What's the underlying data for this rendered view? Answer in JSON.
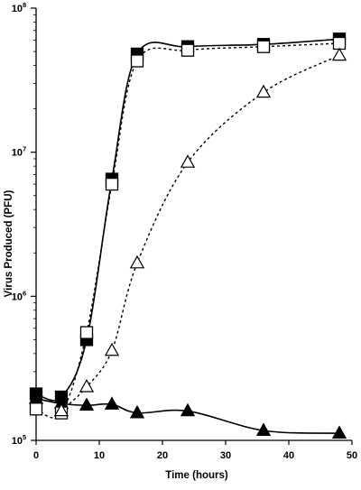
{
  "chart_data": {
    "type": "line",
    "title": "",
    "xlabel": "Time (hours)",
    "ylabel": "Virus Produced (PFU)",
    "x_scale": "linear",
    "y_scale": "log",
    "xlim": [
      0,
      50
    ],
    "ylim": [
      100000,
      100000000
    ],
    "x_ticks": [
      "0",
      "10",
      "20",
      "30",
      "40",
      "50"
    ],
    "y_ticks": [
      {
        "base": "10",
        "exp": "5",
        "value": 100000
      },
      {
        "base": "10",
        "exp": "6",
        "value": 1000000
      },
      {
        "base": "10",
        "exp": "7",
        "value": 10000000
      },
      {
        "base": "10",
        "exp": "8",
        "value": 100000000
      }
    ],
    "grid": false,
    "legend": false,
    "series": [
      {
        "marker": "filled-square",
        "line_style": "solid",
        "x": [
          0,
          4,
          8,
          12,
          16,
          24,
          36,
          48
        ],
        "y": [
          210000,
          200000,
          500000,
          6500000,
          48000000,
          54000000,
          56000000,
          61000000
        ]
      },
      {
        "marker": "open-square",
        "line_style": "dotted",
        "x": [
          0,
          4,
          8,
          12,
          16,
          24,
          36,
          48
        ],
        "y": [
          165000,
          155000,
          560000,
          6000000,
          43000000,
          51000000,
          54000000,
          57000000
        ]
      },
      {
        "marker": "open-triangle",
        "line_style": "dotted",
        "x": [
          4,
          8,
          12,
          16,
          24,
          36,
          48
        ],
        "y": [
          160000,
          235000,
          420000,
          1700000,
          8500000,
          26000000,
          47000000
        ]
      },
      {
        "marker": "filled-triangle",
        "line_style": "solid",
        "x": [
          0,
          4,
          8,
          12,
          16,
          24,
          36,
          48
        ],
        "y": [
          195000,
          180000,
          175000,
          178000,
          155000,
          160000,
          117000,
          112000
        ]
      }
    ]
  }
}
